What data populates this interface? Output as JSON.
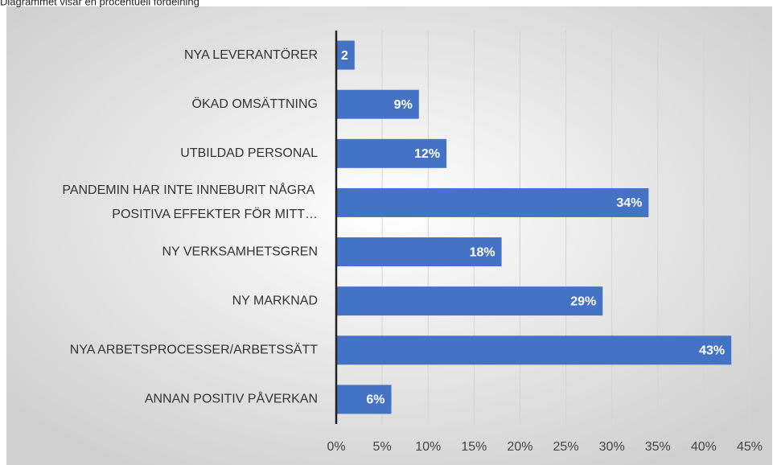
{
  "chart_data": {
    "type": "bar",
    "orientation": "horizontal",
    "title": "Diagrammet visar en procentuell fördelning",
    "categories": [
      "NYA LEVERANTÖRER",
      "ÖKAD OMSÄTTNING",
      "UTBILDAD PERSONAL",
      "PANDEMIN HAR INTE INNEBURIT NÅGRA POSITIVA EFFEKTER FÖR MITT…",
      "NY VERKSAMHETSGREN",
      "NY MARKNAD",
      "NYA ARBETSPROCESSER/ARBETSSÄTT",
      "ANNAN POSITIV PÅVERKAN"
    ],
    "values": [
      2,
      9,
      12,
      34,
      18,
      29,
      43,
      6
    ],
    "value_labels": [
      "2",
      "9%",
      "12%",
      "34%",
      "18%",
      "29%",
      "43%",
      "6%"
    ],
    "color": "#4472c4",
    "xlim": [
      0,
      45
    ],
    "xticks": [
      {
        "value": 0,
        "label": "0%"
      },
      {
        "value": 5,
        "label": "5%"
      },
      {
        "value": 10,
        "label": "10%"
      },
      {
        "value": 15,
        "label": "15%"
      },
      {
        "value": 20,
        "label": "20%"
      },
      {
        "value": 25,
        "label": "25%"
      },
      {
        "value": 30,
        "label": "30%"
      },
      {
        "value": 35,
        "label": "35%"
      },
      {
        "value": 40,
        "label": "40%"
      },
      {
        "value": 45,
        "label": "45%"
      }
    ],
    "grid": true
  }
}
